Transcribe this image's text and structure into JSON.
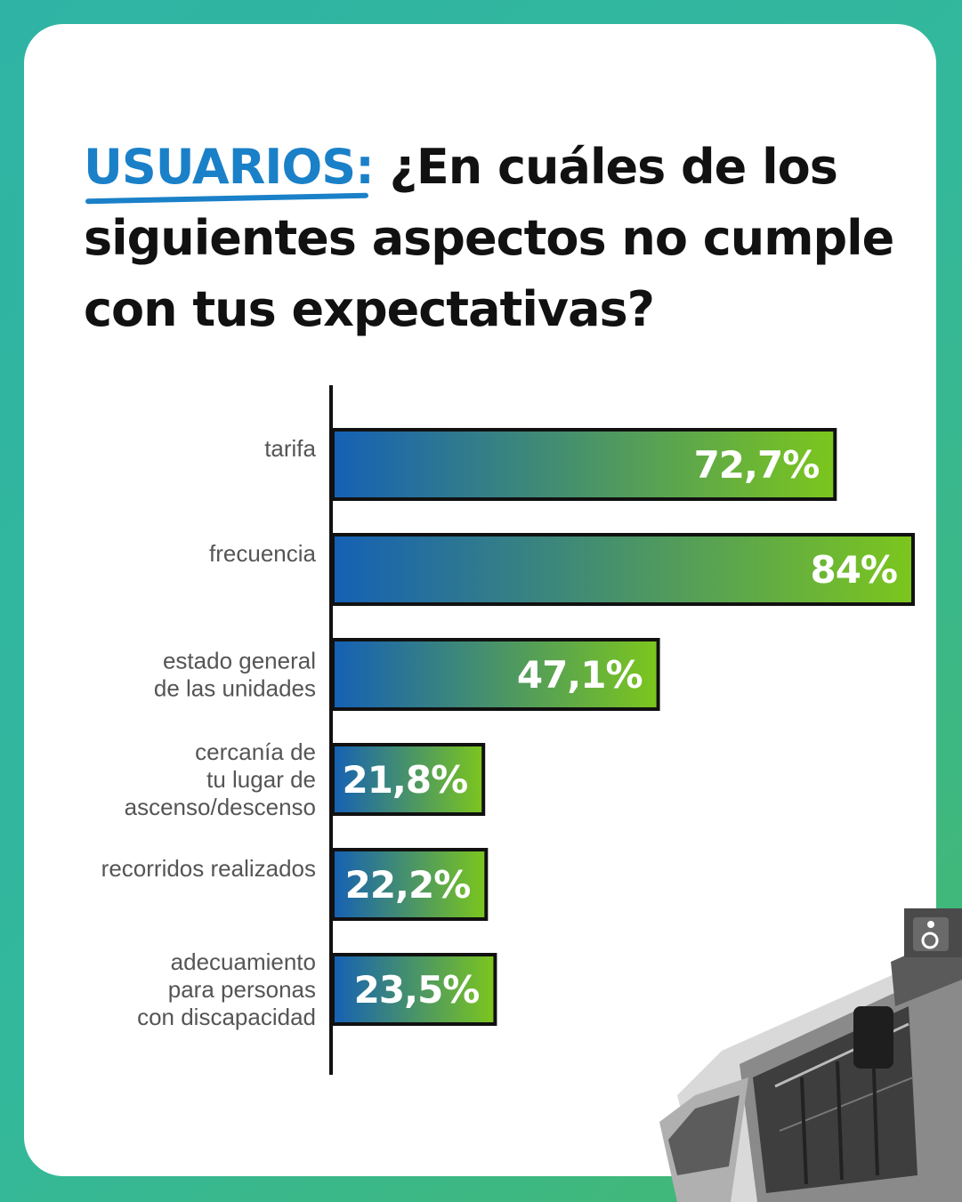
{
  "title": {
    "highlight": "USUARIOS:",
    "rest": " ¿En cuáles de los siguientes aspectos no cumple con tus expectativas?"
  },
  "colors": {
    "bar_start": "#1560b5",
    "bar_end": "#7cc61d",
    "accent": "#1a80c8"
  },
  "illustration": {
    "icon": "bus-photo",
    "accessibility_icon": "wheelchair-icon"
  },
  "chart_data": {
    "type": "bar",
    "orientation": "horizontal",
    "categories": [
      [
        "tarifa"
      ],
      [
        "frecuencia"
      ],
      [
        "estado general",
        "de las unidades"
      ],
      [
        "cercanía de",
        "tu lugar de",
        "ascenso/descenso"
      ],
      [
        "recorridos realizados"
      ],
      [
        "adecuamiento",
        "para personas",
        "con discapacidad"
      ]
    ],
    "values": [
      72.7,
      84,
      47.1,
      21.8,
      22.2,
      23.5
    ],
    "value_labels": [
      "72,7%",
      "84%",
      "47,1%",
      "21,8%",
      "22,2%",
      "23,5%"
    ],
    "xlim": [
      0,
      84
    ],
    "grid": false,
    "legend": "none"
  }
}
